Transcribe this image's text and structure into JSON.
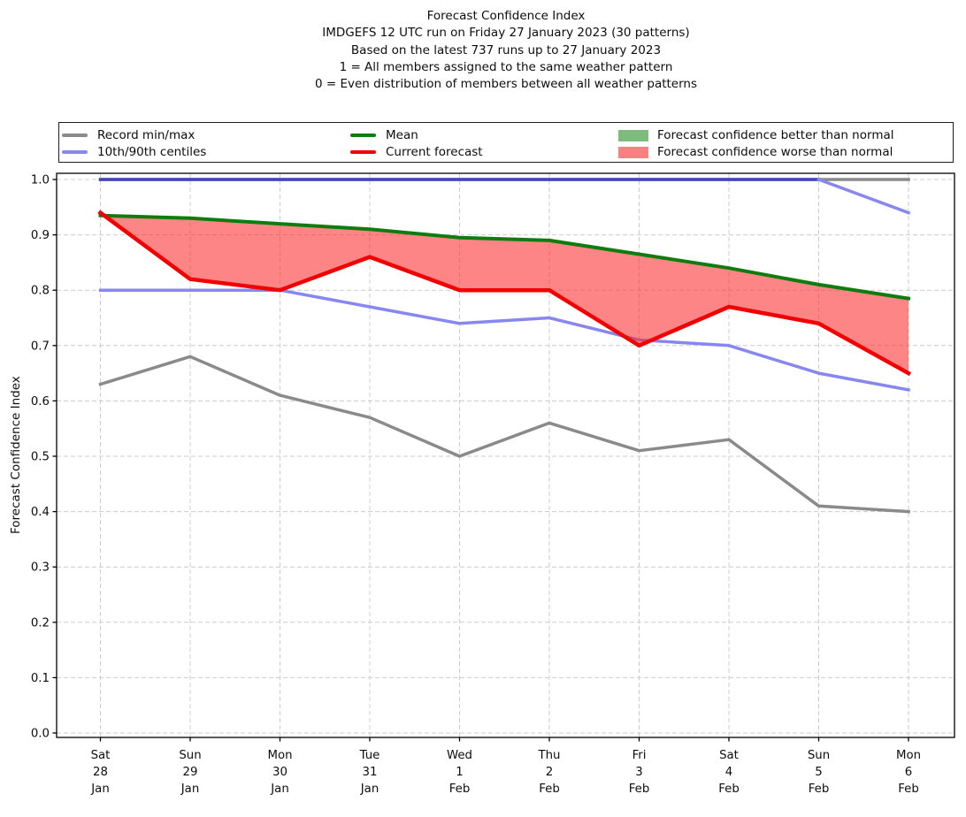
{
  "header": {
    "lines": [
      "Forecast Confidence Index",
      "IMDGEFS 12 UTC run on Friday 27 January 2023 (30 patterns)",
      "Based on the latest 737 runs up to 27 January 2023",
      "1 = All members assigned to the same weather pattern",
      "0 = Even distribution of members between all weather patterns"
    ]
  },
  "colors": {
    "record": "#8a8a8a",
    "centile": "#8787ef",
    "centile_overlap": "#4444c0",
    "mean": "#0f7c0f",
    "current": "#f20000",
    "fill_worse": "rgba(253,45,45,0.58)",
    "fill_better": "rgba(30,145,30,0.58)",
    "grid": "#cccccc",
    "legend_better_patch": "#7ebc7e",
    "legend_worse_patch": "#fb8181",
    "spine": "#000000"
  },
  "legend": {
    "items": [
      {
        "label": "Record min/max",
        "swatch": "line",
        "color_key": "record"
      },
      {
        "label": "10th/90th centiles",
        "swatch": "line",
        "color_key": "centile"
      },
      {
        "label": "Mean",
        "swatch": "line",
        "color_key": "mean"
      },
      {
        "label": "Current forecast",
        "swatch": "line",
        "color_key": "current"
      },
      {
        "label": "Forecast confidence better than normal",
        "swatch": "patch",
        "color_key": "legend_better_patch"
      },
      {
        "label": "Forecast confidence worse than normal",
        "swatch": "patch",
        "color_key": "legend_worse_patch"
      }
    ]
  },
  "chart_data": {
    "type": "line",
    "title": "Forecast Confidence Index",
    "xlabel": "",
    "ylabel": "Forecast Confidence Index",
    "ylim": [
      0.0,
      1.0
    ],
    "grid": true,
    "legend_position": "top",
    "categories": [
      [
        "Sat",
        "28",
        "Jan"
      ],
      [
        "Sun",
        "29",
        "Jan"
      ],
      [
        "Mon",
        "30",
        "Jan"
      ],
      [
        "Tue",
        "31",
        "Jan"
      ],
      [
        "Wed",
        "1",
        "Feb"
      ],
      [
        "Thu",
        "2",
        "Feb"
      ],
      [
        "Fri",
        "3",
        "Feb"
      ],
      [
        "Sat",
        "4",
        "Feb"
      ],
      [
        "Sun",
        "5",
        "Feb"
      ],
      [
        "Mon",
        "6",
        "Feb"
      ]
    ],
    "ytick_values": [
      0.0,
      0.1,
      0.2,
      0.3,
      0.4,
      0.5,
      0.6,
      0.7,
      0.8,
      0.9,
      1.0
    ],
    "ytick_labels": [
      "0.0",
      "0.1",
      "0.2",
      "0.3",
      "0.4",
      "0.5",
      "0.6",
      "0.7",
      "0.8",
      "0.9",
      "1.0"
    ],
    "series": [
      {
        "id": "record_min",
        "name": "Record min",
        "color_key": "record",
        "width": 3.5,
        "values": [
          0.63,
          0.68,
          0.61,
          0.57,
          0.5,
          0.56,
          0.51,
          0.53,
          0.41,
          0.4
        ]
      },
      {
        "id": "record_max",
        "name": "Record max",
        "color_key": "record",
        "width": 3.5,
        "values": [
          1.0,
          1.0,
          1.0,
          1.0,
          1.0,
          1.0,
          1.0,
          1.0,
          1.0,
          1.0
        ]
      },
      {
        "id": "p10",
        "name": "10th centile",
        "color_key": "centile",
        "width": 3.5,
        "values": [
          0.8,
          0.8,
          0.8,
          0.77,
          0.74,
          0.75,
          0.71,
          0.7,
          0.65,
          0.62
        ]
      },
      {
        "id": "p90",
        "name": "90th centile",
        "color_key": "centile_overlap",
        "width": 3.5,
        "values": [
          1.0,
          1.0,
          1.0,
          1.0,
          1.0,
          1.0,
          1.0,
          1.0,
          1.0,
          null
        ]
      },
      {
        "id": "p90_descent",
        "name": "90th centile (descent)",
        "color_key": "centile",
        "width": 3.5,
        "values": [
          null,
          null,
          null,
          null,
          null,
          null,
          null,
          null,
          1.0,
          0.94
        ]
      },
      {
        "id": "mean",
        "name": "Mean",
        "color_key": "mean",
        "width": 4,
        "values": [
          0.935,
          0.93,
          0.92,
          0.91,
          0.895,
          0.89,
          0.865,
          0.84,
          0.81,
          0.785
        ]
      },
      {
        "id": "current",
        "name": "Current forecast",
        "color_key": "current",
        "width": 4.5,
        "values": [
          0.94,
          0.82,
          0.8,
          0.86,
          0.8,
          0.8,
          0.7,
          0.77,
          0.74,
          0.65
        ]
      }
    ],
    "fills": [
      {
        "between": [
          "mean",
          "current"
        ],
        "when": "current<mean",
        "label": "Forecast confidence worse than normal",
        "color_key": "fill_worse"
      },
      {
        "between": [
          "mean",
          "current"
        ],
        "when": "current>mean",
        "label": "Forecast confidence better than normal",
        "color_key": "fill_better"
      }
    ]
  }
}
